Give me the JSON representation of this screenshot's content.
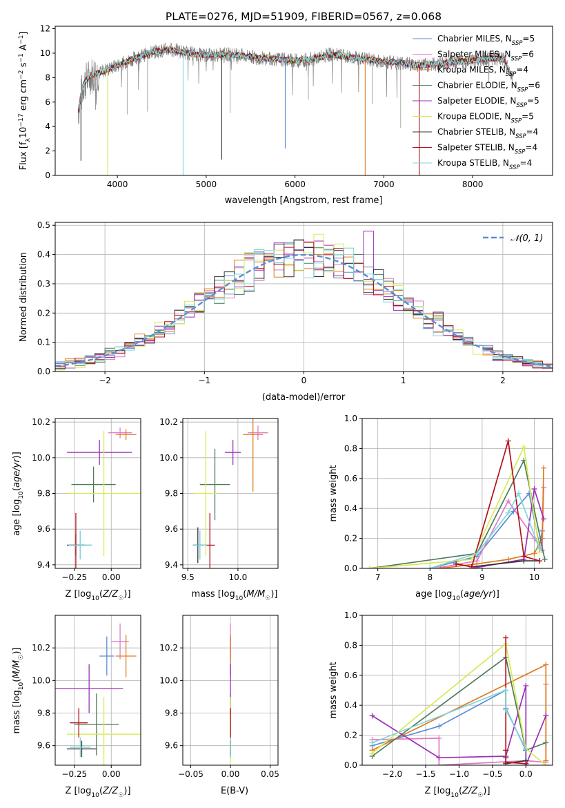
{
  "figure_title": "PLATE=0276, MJD=51909, FIBERID=0567, z=0.068",
  "models": [
    {
      "name": "Chabrier MILES",
      "nssp": "5",
      "color": "#5b8cd6"
    },
    {
      "name": "Salpeter MILES",
      "nssp": "6",
      "color": "#e07ac6"
    },
    {
      "name": "Kroupa MILES",
      "nssp": "4",
      "color": "#e07b22"
    },
    {
      "name": "Chabrier ELODIE",
      "nssp": "6",
      "color": "#4e7a59"
    },
    {
      "name": "Salpeter ELODIE",
      "nssp": "5",
      "color": "#9b2fb5"
    },
    {
      "name": "Kroupa ELODIE",
      "nssp": "5",
      "color": "#d7ea55"
    },
    {
      "name": "Chabrier STELIB",
      "nssp": "4",
      "color": "#333333"
    },
    {
      "name": "Salpeter STELIB",
      "nssp": "4",
      "color": "#b3101a"
    },
    {
      "name": "Kroupa STELIB",
      "nssp": "4",
      "color": "#7fd6dc"
    }
  ],
  "chart_data": [
    {
      "id": "spectrum",
      "type": "line",
      "xlabel": "wavelength [Angstrom, rest frame]",
      "ylabel": "Flux [f_λ 10^-17 erg cm^-2 s^-1 A^-1]",
      "xlim": [
        3300,
        8900
      ],
      "ylim": [
        0,
        12.2
      ],
      "xticks": [
        4000,
        5000,
        6000,
        7000,
        8000
      ],
      "yticks": [
        0,
        2,
        4,
        6,
        8,
        10,
        12
      ],
      "data_color": "#808080",
      "continuum": [
        [
          3560,
          5.3
        ],
        [
          3620,
          7.5
        ],
        [
          3700,
          8.2
        ],
        [
          3800,
          8.4
        ],
        [
          3900,
          8.7
        ],
        [
          4000,
          9.0
        ],
        [
          4200,
          9.6
        ],
        [
          4400,
          10.1
        ],
        [
          4600,
          10.3
        ],
        [
          4800,
          10.0
        ],
        [
          5000,
          9.8
        ],
        [
          5200,
          9.9
        ],
        [
          5400,
          9.8
        ],
        [
          5600,
          9.6
        ],
        [
          5800,
          9.5
        ],
        [
          6000,
          9.4
        ],
        [
          6200,
          9.5
        ],
        [
          6400,
          9.9
        ],
        [
          6600,
          9.7
        ],
        [
          6800,
          9.5
        ],
        [
          7000,
          9.3
        ],
        [
          7200,
          9.2
        ],
        [
          7400,
          9.0
        ],
        [
          7600,
          9.1
        ],
        [
          7800,
          9.3
        ],
        [
          8000,
          9.4
        ],
        [
          8200,
          9.6
        ],
        [
          8350,
          9.5
        ],
        [
          8450,
          8.0
        ]
      ],
      "dips": [
        [
          3890,
          0
        ],
        [
          4740,
          0
        ],
        [
          6790,
          0
        ],
        [
          7400,
          0
        ],
        [
          3590,
          1.2
        ],
        [
          5175,
          1.3
        ],
        [
          5890,
          2.2
        ]
      ],
      "legend_loc": "right"
    },
    {
      "id": "residuals",
      "type": "histogram",
      "xlabel": "(data-model)/error",
      "ylabel": "Normed distribution",
      "xlim": [
        -2.5,
        2.5
      ],
      "ylim": [
        0,
        0.51
      ],
      "xticks": [
        -2,
        -1,
        0,
        1,
        2
      ],
      "yticks": [
        0,
        0.1,
        0.2,
        0.3,
        0.4,
        0.5
      ],
      "bin_width": 0.1,
      "reference": {
        "label": "𝒩(0, 1)",
        "mean": 0,
        "sigma": 1,
        "style": "dashed",
        "color": "#5b8cd6"
      },
      "legend_loc": "upper right"
    },
    {
      "id": "age-vs-Z",
      "type": "errorbar",
      "xlabel": "Z [log10(Z/Z☉)]",
      "ylabel": "age [log10(age/yr)]",
      "xlim": [
        -0.38,
        0.2
      ],
      "ylim": [
        9.38,
        10.22
      ],
      "xticks": [
        -0.25,
        0.0
      ],
      "xtick_labels": [
        "−0.25",
        "0.00"
      ],
      "yticks": [
        9.4,
        9.6,
        9.8,
        10.0,
        10.2
      ],
      "points": [
        {
          "model": 0,
          "x": -0.21,
          "y": 9.51,
          "xerr": 0.08,
          "yerr": 0.08
        },
        {
          "model": 1,
          "x": 0.06,
          "y": 10.14,
          "xerr": 0.08,
          "yerr": 0.03
        },
        {
          "model": 2,
          "x": 0.1,
          "y": 10.13,
          "xerr": 0.07,
          "yerr": 0.03
        },
        {
          "model": 3,
          "x": -0.12,
          "y": 9.85,
          "xerr": 0.15,
          "yerr": 0.1
        },
        {
          "model": 4,
          "x": -0.08,
          "y": 10.03,
          "xerr": 0.22,
          "yerr": 0.07
        },
        {
          "model": 5,
          "x": -0.05,
          "y": 9.8,
          "xerr": 0.25,
          "yerr": 0.35
        },
        {
          "model": 6,
          "x": -0.24,
          "y": 9.51,
          "xerr": 0.06,
          "yerr": 0.06
        },
        {
          "model": 7,
          "x": -0.24,
          "y": 9.51,
          "xerr": 0.05,
          "yerr": 0.18
        },
        {
          "model": 8,
          "x": -0.21,
          "y": 9.51,
          "xerr": 0.08,
          "yerr": 0.08
        }
      ]
    },
    {
      "id": "age-vs-mass",
      "type": "errorbar",
      "xlabel": "mass [log10(M/M☉)]",
      "ylabel": "",
      "xlim": [
        9.45,
        10.4
      ],
      "ylim": [
        9.38,
        10.22
      ],
      "xticks": [
        9.5,
        10.0
      ],
      "xtick_labels": [
        "9.5",
        "10.0"
      ],
      "yticks": [
        9.4,
        9.6,
        9.8,
        10.0,
        10.2
      ],
      "points": [
        {
          "model": 0,
          "x": 9.62,
          "y": 9.51,
          "xerr": 0.07,
          "yerr": 0.08
        },
        {
          "model": 1,
          "x": 10.2,
          "y": 10.14,
          "xerr": 0.1,
          "yerr": 0.04
        },
        {
          "model": 2,
          "x": 10.15,
          "y": 10.13,
          "xerr": 0.1,
          "yerr": 0.32
        },
        {
          "model": 3,
          "x": 9.77,
          "y": 9.85,
          "xerr": 0.15,
          "yerr": 0.2
        },
        {
          "model": 4,
          "x": 9.95,
          "y": 10.03,
          "xerr": 0.08,
          "yerr": 0.07
        },
        {
          "model": 5,
          "x": 9.68,
          "y": 9.8,
          "xerr": 0.12,
          "yerr": 0.35
        },
        {
          "model": 6,
          "x": 9.6,
          "y": 9.51,
          "xerr": 0.05,
          "yerr": 0.1
        },
        {
          "model": 7,
          "x": 9.72,
          "y": 9.51,
          "xerr": 0.05,
          "yerr": 0.18
        },
        {
          "model": 8,
          "x": 9.62,
          "y": 9.51,
          "xerr": 0.07,
          "yerr": 0.08
        }
      ]
    },
    {
      "id": "weight-vs-age",
      "type": "line",
      "xlabel": "age [log10(age/yr)]",
      "ylabel": "mass weight",
      "xlim": [
        6.7,
        10.35
      ],
      "ylim": [
        0,
        1.0
      ],
      "xticks": [
        7,
        8,
        9,
        10
      ],
      "yticks": [
        0,
        0.2,
        0.4,
        0.6,
        0.8,
        1.0
      ],
      "series": [
        {
          "model": 0,
          "x": [
            8.0,
            8.9,
            9.6,
            9.9,
            10.1,
            10.15
          ],
          "y": [
            0.0,
            0.08,
            0.38,
            0.5,
            0.15,
            0.25
          ]
        },
        {
          "model": 1,
          "x": [
            8.1,
            8.9,
            9.5,
            10.0,
            10.15,
            10.18
          ],
          "y": [
            0.0,
            0.05,
            0.45,
            0.2,
            0.12,
            0.54
          ]
        },
        {
          "model": 2,
          "x": [
            8.2,
            8.9,
            9.5,
            10.0,
            10.15,
            10.18
          ],
          "y": [
            0.0,
            0.03,
            0.06,
            0.1,
            0.2,
            0.67
          ]
        },
        {
          "model": 3,
          "x": [
            6.85,
            8.9,
            9.8,
            10.2
          ],
          "y": [
            0.0,
            0.1,
            0.72,
            0.06
          ]
        },
        {
          "model": 4,
          "x": [
            8.8,
            9.8,
            10.0,
            10.18
          ],
          "y": [
            0.0,
            0.06,
            0.53,
            0.33
          ]
        },
        {
          "model": 5,
          "x": [
            6.85,
            8.8,
            9.8,
            10.1
          ],
          "y": [
            0.0,
            0.06,
            0.81,
            0.11
          ]
        },
        {
          "model": 6,
          "x": [
            8.5,
            8.8,
            9.8,
            10.1
          ],
          "y": [
            0.03,
            0.01,
            0.05,
            0.05
          ]
        },
        {
          "model": 7,
          "x": [
            8.5,
            8.8,
            9.5,
            9.8,
            10.1
          ],
          "y": [
            0.03,
            0.01,
            0.85,
            0.08,
            0.05
          ]
        },
        {
          "model": 8,
          "x": [
            8.0,
            8.9,
            9.5,
            9.7,
            10.1
          ],
          "y": [
            0.0,
            0.1,
            0.37,
            0.5,
            0.13
          ]
        }
      ]
    },
    {
      "id": "mass-vs-Z",
      "type": "errorbar",
      "xlabel": "Z [log10(Z/Z☉)]",
      "ylabel": "mass [log10(M/M☉)]",
      "xlim": [
        -0.38,
        0.2
      ],
      "ylim": [
        9.48,
        10.4
      ],
      "xticks": [
        -0.25,
        0.0
      ],
      "xtick_labels": [
        "−0.25",
        "0.00"
      ],
      "yticks": [
        9.6,
        9.8,
        10.0,
        10.2
      ],
      "points": [
        {
          "model": 0,
          "x": -0.03,
          "y": 10.15,
          "xerr": 0.05,
          "yerr": 0.12
        },
        {
          "model": 1,
          "x": 0.06,
          "y": 10.24,
          "xerr": 0.06,
          "yerr": 0.11
        },
        {
          "model": 2,
          "x": 0.1,
          "y": 10.15,
          "xerr": 0.07,
          "yerr": 0.13
        },
        {
          "model": 3,
          "x": -0.1,
          "y": 9.73,
          "xerr": 0.15,
          "yerr": 0.19
        },
        {
          "model": 4,
          "x": -0.15,
          "y": 9.95,
          "xerr": 0.23,
          "yerr": 0.15
        },
        {
          "model": 5,
          "x": -0.05,
          "y": 9.67,
          "xerr": 0.25,
          "yerr": 0.23
        },
        {
          "model": 6,
          "x": -0.2,
          "y": 9.58,
          "xerr": 0.1,
          "yerr": 0.05
        },
        {
          "model": 7,
          "x": -0.22,
          "y": 9.74,
          "xerr": 0.06,
          "yerr": 0.09
        },
        {
          "model": 8,
          "x": -0.21,
          "y": 9.59,
          "xerr": 0.07,
          "yerr": 0.06
        }
      ]
    },
    {
      "id": "mass-vs-ebv",
      "type": "errorbar",
      "xlabel": "E(B-V)",
      "ylabel": "",
      "xlim": [
        -0.06,
        0.06
      ],
      "ylim": [
        9.48,
        10.4
      ],
      "xticks": [
        -0.05,
        0.0,
        0.05
      ],
      "xtick_labels": [
        "−0.05",
        "0.00",
        "0.05"
      ],
      "yticks": [
        9.6,
        9.8,
        10.0,
        10.2
      ],
      "points": [
        {
          "model": 0,
          "x": 0.0,
          "y": 10.15,
          "xerr": 0,
          "yerr": 0.12
        },
        {
          "model": 1,
          "x": 0.0,
          "y": 10.24,
          "xerr": 0,
          "yerr": 0.11
        },
        {
          "model": 2,
          "x": 0.0,
          "y": 10.15,
          "xerr": 0,
          "yerr": 0.13
        },
        {
          "model": 3,
          "x": 0.0,
          "y": 9.73,
          "xerr": 0,
          "yerr": 0.19
        },
        {
          "model": 4,
          "x": 0.0,
          "y": 9.95,
          "xerr": 0,
          "yerr": 0.15
        },
        {
          "model": 5,
          "x": 0.0,
          "y": 9.67,
          "xerr": 0,
          "yerr": 0.23
        },
        {
          "model": 6,
          "x": 0.0,
          "y": 9.58,
          "xerr": 0,
          "yerr": 0.05
        },
        {
          "model": 7,
          "x": 0.0,
          "y": 9.74,
          "xerr": 0,
          "yerr": 0.09
        },
        {
          "model": 8,
          "x": 0.0,
          "y": 9.59,
          "xerr": 0,
          "yerr": 0.06
        }
      ]
    },
    {
      "id": "weight-vs-Z",
      "type": "line",
      "xlabel": "Z [log10(Z/Z☉)]",
      "ylabel": "mass weight",
      "xlim": [
        -2.45,
        0.4
      ],
      "ylim": [
        0,
        1.0
      ],
      "xticks": [
        -2.0,
        -1.5,
        -1.0,
        -0.5,
        0.0
      ],
      "xtick_labels": [
        "−2.0",
        "−1.5",
        "−1.0",
        "−0.5",
        "0.0"
      ],
      "yticks": [
        0,
        0.2,
        0.4,
        0.6,
        0.8,
        1.0
      ],
      "series": [
        {
          "model": 0,
          "x": [
            -2.3,
            -1.3,
            -0.3,
            -0.3,
            0.0,
            0.0
          ],
          "y": [
            0.13,
            0.26,
            0.5,
            0.38,
            0.1,
            0.03
          ]
        },
        {
          "model": 1,
          "x": [
            -2.3,
            -1.3,
            -1.3,
            0.0,
            0.3,
            0.3
          ],
          "y": [
            0.17,
            0.18,
            0.0,
            0.03,
            0.02,
            0.54
          ]
        },
        {
          "model": 2,
          "x": [
            -2.3,
            0.3,
            0.3
          ],
          "y": [
            0.1,
            0.67,
            0.03
          ]
        },
        {
          "model": 3,
          "x": [
            -2.3,
            -0.3,
            0.0,
            0.3
          ],
          "y": [
            0.06,
            0.72,
            0.1,
            0.15
          ]
        },
        {
          "model": 4,
          "x": [
            -2.3,
            -1.3,
            -0.3,
            0.0,
            0.0,
            0.3
          ],
          "y": [
            0.33,
            0.05,
            0.06,
            0.53,
            0.0,
            0.33
          ]
        },
        {
          "model": 5,
          "x": [
            -2.3,
            -0.3,
            0.0,
            0.3
          ],
          "y": [
            0.08,
            0.81,
            0.11,
            0.0
          ]
        },
        {
          "model": 6,
          "x": [
            -0.3,
            -0.3,
            0.0
          ],
          "y": [
            0.05,
            0.01,
            0.03
          ]
        },
        {
          "model": 7,
          "x": [
            -0.3,
            -0.3,
            -0.3,
            0.0
          ],
          "y": [
            0.85,
            0.1,
            0.02,
            0.01
          ]
        },
        {
          "model": 8,
          "x": [
            -2.3,
            -0.3,
            -0.3,
            0.0
          ],
          "y": [
            0.15,
            0.5,
            0.37,
            0.11
          ]
        }
      ]
    }
  ]
}
